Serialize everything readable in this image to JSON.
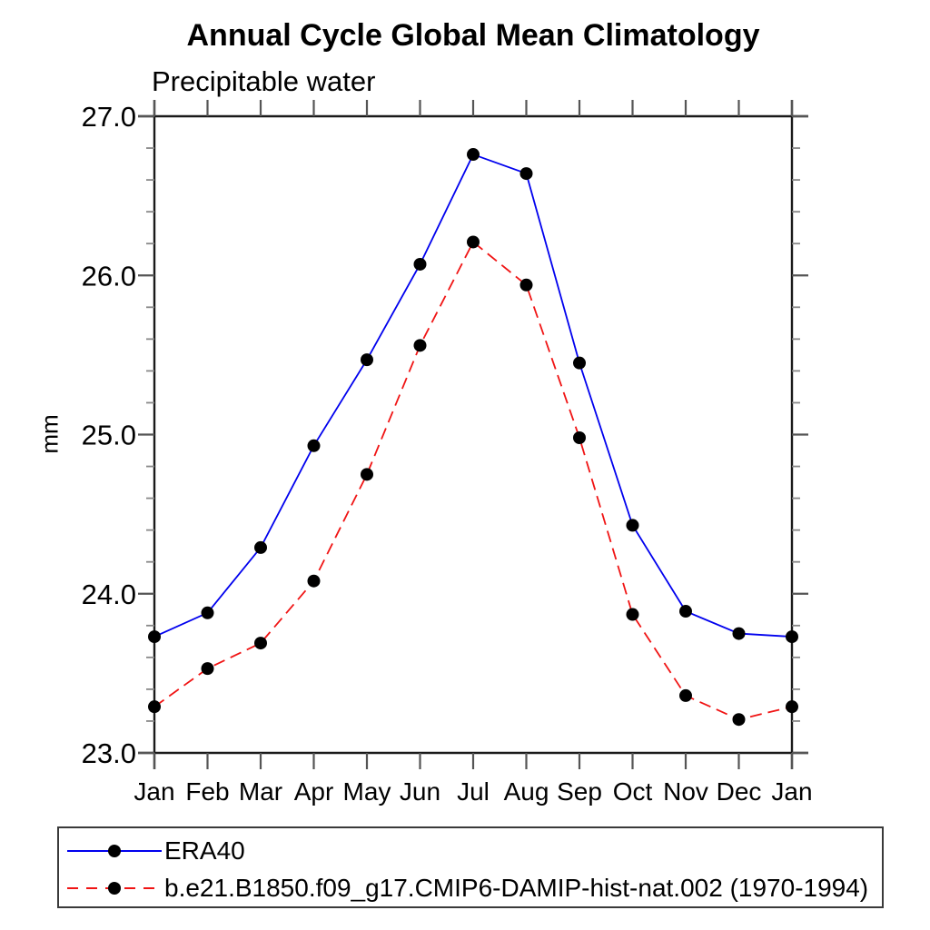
{
  "title": "Annual Cycle Global Mean Climatology",
  "subtitle": "Precipitable water",
  "y_axis": {
    "label": "mm",
    "tick_labels": [
      "23.0",
      "24.0",
      "25.0",
      "26.0",
      "27.0"
    ]
  },
  "colors": {
    "era40_line": "#0000ee",
    "model_line": "#f01414",
    "marker": "#000000",
    "axis": "#1a1a1a",
    "major_tick": "#555555",
    "minor_tick": "#888888"
  },
  "chart_data": {
    "type": "line",
    "title": "Annual Cycle Global Mean Climatology",
    "subtitle": "Precipitable water",
    "xlabel": "",
    "ylabel": "mm",
    "categories": [
      "Jan",
      "Feb",
      "Mar",
      "Apr",
      "May",
      "Jun",
      "Jul",
      "Aug",
      "Sep",
      "Oct",
      "Nov",
      "Dec",
      "Jan"
    ],
    "ylim": [
      23.0,
      27.0
    ],
    "y_major_ticks": [
      23.0,
      24.0,
      25.0,
      26.0,
      27.0
    ],
    "y_minor_step": 0.2,
    "grid": false,
    "legend_position": "bottom-left-box",
    "series": [
      {
        "name": "ERA40",
        "line_color": "#0000ee",
        "line_style": "solid",
        "marker": "filled-circle",
        "marker_color": "#000000",
        "values": [
          23.73,
          23.88,
          24.29,
          24.93,
          25.47,
          26.07,
          26.76,
          26.64,
          25.45,
          24.43,
          23.89,
          23.75,
          23.73
        ]
      },
      {
        "name": "b.e21.B1850.f09_g17.CMIP6-DAMIP-hist-nat.002 (1970-1994)",
        "line_color": "#f01414",
        "line_style": "dashed",
        "marker": "filled-circle",
        "marker_color": "#000000",
        "values": [
          23.29,
          23.53,
          23.69,
          24.08,
          24.75,
          25.56,
          26.21,
          25.94,
          24.98,
          23.87,
          23.36,
          23.21,
          23.29
        ]
      }
    ]
  }
}
